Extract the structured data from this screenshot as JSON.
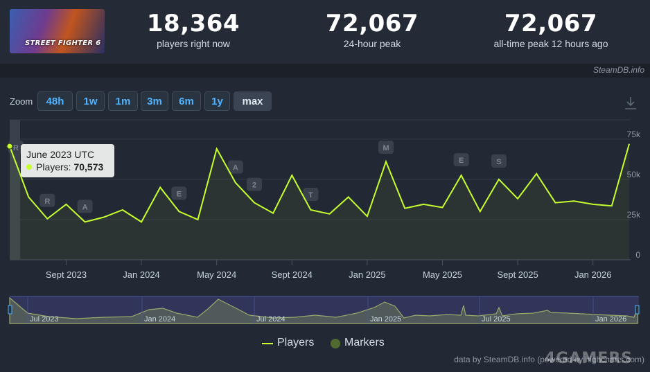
{
  "capsule": {
    "logo_text": "STREET FIGHTER 6"
  },
  "stats": [
    {
      "value": "18,364",
      "label": "players right now"
    },
    {
      "value": "72,067",
      "label": "24-hour peak"
    },
    {
      "value": "72,067",
      "label": "all-time peak 12 hours ago"
    }
  ],
  "credit_top": "SteamDB.info",
  "zoom": {
    "label": "Zoom",
    "buttons": [
      "48h",
      "1w",
      "1m",
      "3m",
      "6m",
      "1y",
      "max"
    ],
    "active": "max"
  },
  "tooltip": {
    "title": "June 2023 UTC",
    "series_label": "Players:",
    "value": "70,573"
  },
  "legend": {
    "players": "Players",
    "markers": "Markers"
  },
  "footer": "data by SteamDB.info (powered by highcharts.com)",
  "watermark": "4GAMERS",
  "colors": {
    "line": "#c6ff2d",
    "marker_legend": "#4f6b2e",
    "background": "#1b2029"
  },
  "chart_data": {
    "type": "line",
    "series": [
      {
        "name": "Players",
        "x": [
          "2023-06",
          "2023-07",
          "2023-08",
          "2023-09",
          "2023-10",
          "2023-11",
          "2023-12",
          "2024-01",
          "2024-02",
          "2024-03",
          "2024-04",
          "2024-05",
          "2024-06",
          "2024-07",
          "2024-08",
          "2024-09",
          "2024-10",
          "2024-11",
          "2024-12",
          "2025-01",
          "2025-02",
          "2025-03",
          "2025-04",
          "2025-05",
          "2025-06",
          "2025-07",
          "2025-08",
          "2025-09",
          "2025-10",
          "2025-11",
          "2025-12",
          "2026-01",
          "2026-02",
          "2026-03"
        ],
        "values": [
          70573,
          39000,
          25500,
          34500,
          23500,
          26500,
          31000,
          23500,
          45000,
          30000,
          25000,
          69000,
          48000,
          35500,
          29000,
          52500,
          31000,
          28500,
          39000,
          27000,
          61000,
          32000,
          34500,
          32500,
          52500,
          30000,
          50000,
          38000,
          53500,
          35500,
          36500,
          34500,
          33500,
          72067
        ]
      }
    ],
    "x_tick_labels": [
      "Sept 2023",
      "Jan 2024",
      "May 2024",
      "Sept 2024",
      "Jan 2025",
      "May 2025",
      "Sept 2025",
      "Jan 2026"
    ],
    "y_tick_labels": [
      "0",
      "25k",
      "50k",
      "75k"
    ],
    "ylim": [
      0,
      87000
    ],
    "markers": [
      {
        "label": "R",
        "x": "2023-06"
      },
      {
        "label": "R",
        "x": "2023-08"
      },
      {
        "label": "A",
        "x": "2023-10"
      },
      {
        "label": "E",
        "x": "2024-03"
      },
      {
        "label": "A",
        "x": "2024-06"
      },
      {
        "label": "2",
        "x": "2024-07"
      },
      {
        "label": "T",
        "x": "2024-10"
      },
      {
        "label": "M",
        "x": "2025-02"
      },
      {
        "label": "E",
        "x": "2025-06"
      },
      {
        "label": "S",
        "x": "2025-08"
      }
    ],
    "navigator_labels": [
      "Jul 2023",
      "Jan 2024",
      "Jul 2024",
      "Jan 2025",
      "Jul 2025",
      "Jan 2026"
    ],
    "grid": true,
    "legend_position": "bottom-center"
  }
}
